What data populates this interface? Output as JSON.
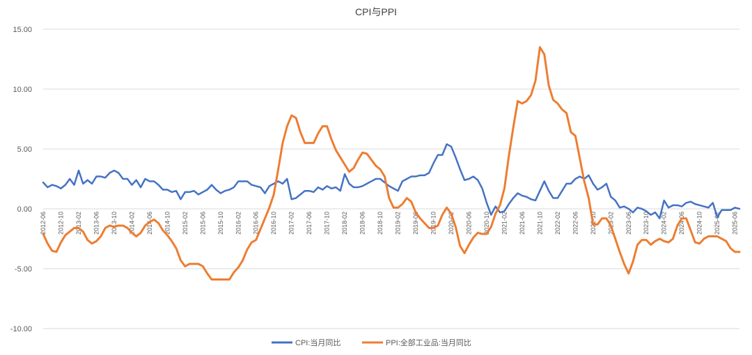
{
  "chart_data": {
    "type": "line",
    "title": "CPI与PPI",
    "xlabel": "",
    "ylabel": "",
    "ylim": [
      -10,
      15
    ],
    "yticks": [
      "-10.00",
      "-5.00",
      "0.00",
      "5.00",
      "10.00",
      "15.00"
    ],
    "ytick_values": [
      -10,
      -5,
      0,
      5,
      10,
      15
    ],
    "grid": "horizontal",
    "legend_position": "bottom",
    "x_start": "2012-06",
    "x_end": "2025-08",
    "xtick_labels": [
      "2012-06",
      "2012-10",
      "2013-02",
      "2013-06",
      "2013-10",
      "2014-02",
      "2014-06",
      "2014-10",
      "2015-02",
      "2015-06",
      "2015-10",
      "2016-02",
      "2016-06",
      "2016-10",
      "2017-02",
      "2017-06",
      "2017-10",
      "2018-02",
      "2018-06",
      "2018-10",
      "2019-02",
      "2019-06",
      "2019-10",
      "2020-02",
      "2020-06",
      "2020-10",
      "2021-02",
      "2021-06",
      "2021-10",
      "2022-02",
      "2022-06",
      "2022-10",
      "2023-02",
      "2023-06",
      "2023-10",
      "2024-02",
      "2024-06",
      "2024-10",
      "2025-02",
      "2025-06"
    ],
    "series": [
      {
        "name": "CPI:当月同比",
        "color": "#4472C4",
        "values": [
          2.2,
          1.8,
          2.0,
          1.9,
          1.7,
          2.0,
          2.5,
          2.0,
          3.2,
          2.1,
          2.4,
          2.1,
          2.7,
          2.7,
          2.6,
          3.0,
          3.2,
          3.0,
          2.5,
          2.5,
          2.0,
          2.4,
          1.8,
          2.5,
          2.3,
          2.3,
          2.0,
          1.6,
          1.6,
          1.4,
          1.5,
          0.8,
          1.4,
          1.4,
          1.5,
          1.2,
          1.4,
          1.6,
          2.0,
          1.6,
          1.3,
          1.5,
          1.6,
          1.8,
          2.3,
          2.3,
          2.3,
          2.0,
          1.9,
          1.8,
          1.3,
          1.9,
          2.1,
          2.3,
          2.1,
          2.5,
          0.8,
          0.9,
          1.2,
          1.5,
          1.5,
          1.4,
          1.8,
          1.6,
          1.9,
          1.7,
          1.8,
          1.5,
          2.9,
          2.1,
          1.8,
          1.8,
          1.9,
          2.1,
          2.3,
          2.5,
          2.5,
          2.2,
          1.9,
          1.7,
          1.5,
          2.3,
          2.5,
          2.7,
          2.7,
          2.8,
          2.8,
          3.0,
          3.8,
          4.5,
          4.5,
          5.4,
          5.2,
          4.3,
          3.3,
          2.4,
          2.5,
          2.7,
          2.4,
          1.7,
          0.5,
          -0.5,
          0.2,
          -0.3,
          -0.2,
          0.4,
          0.9,
          1.3,
          1.1,
          1.0,
          0.8,
          0.7,
          1.5,
          2.3,
          1.5,
          0.9,
          0.9,
          1.5,
          2.1,
          2.1,
          2.5,
          2.7,
          2.5,
          2.8,
          2.1,
          1.6,
          1.8,
          2.1,
          1.0,
          0.7,
          0.1,
          0.2,
          0.0,
          -0.3,
          0.1,
          0.0,
          -0.2,
          -0.5,
          -0.3,
          -0.8,
          0.7,
          0.1,
          0.3,
          0.3,
          0.2,
          0.5,
          0.6,
          0.4,
          0.3,
          0.2,
          0.1,
          0.5,
          -0.7,
          -0.1,
          -0.1,
          -0.1,
          0.1,
          0.0
        ]
      },
      {
        "name": "PPI:全部工业品:当月同比",
        "color": "#ED7D31",
        "values": [
          -2.1,
          -2.9,
          -3.5,
          -3.6,
          -2.8,
          -2.2,
          -1.9,
          -1.6,
          -1.6,
          -1.9,
          -2.6,
          -2.9,
          -2.7,
          -2.3,
          -1.6,
          -1.4,
          -1.5,
          -1.4,
          -1.4,
          -1.6,
          -2.0,
          -2.3,
          -2.0,
          -1.4,
          -1.1,
          -0.9,
          -1.2,
          -1.8,
          -2.2,
          -2.7,
          -3.3,
          -4.3,
          -4.8,
          -4.6,
          -4.6,
          -4.6,
          -4.8,
          -5.4,
          -5.9,
          -5.9,
          -5.9,
          -5.9,
          -5.9,
          -5.3,
          -4.9,
          -4.3,
          -3.4,
          -2.8,
          -2.6,
          -1.7,
          -0.8,
          0.1,
          1.2,
          3.3,
          5.5,
          6.9,
          7.8,
          7.6,
          6.4,
          5.5,
          5.5,
          5.5,
          6.3,
          6.9,
          6.9,
          5.8,
          4.9,
          4.3,
          3.7,
          3.1,
          3.4,
          4.1,
          4.7,
          4.6,
          4.1,
          3.6,
          3.3,
          2.7,
          0.9,
          0.1,
          0.1,
          0.4,
          0.9,
          0.6,
          -0.3,
          -0.8,
          -1.2,
          -1.6,
          -1.6,
          -1.4,
          -0.5,
          0.1,
          -0.4,
          -1.5,
          -3.1,
          -3.7,
          -3.0,
          -2.4,
          -2.0,
          -2.1,
          -2.1,
          -1.5,
          -0.4,
          0.3,
          1.7,
          4.4,
          6.8,
          9.0,
          8.8,
          9.0,
          9.5,
          10.7,
          13.5,
          12.9,
          10.3,
          9.1,
          8.8,
          8.3,
          8.0,
          6.4,
          6.1,
          4.2,
          2.3,
          0.9,
          -1.3,
          -1.3,
          -0.8,
          -0.8,
          -1.4,
          -2.5,
          -3.6,
          -4.6,
          -5.4,
          -4.4,
          -3.0,
          -2.6,
          -2.6,
          -3.0,
          -2.7,
          -2.5,
          -2.7,
          -2.8,
          -2.5,
          -1.4,
          -0.8,
          -0.8,
          -1.8,
          -2.8,
          -2.9,
          -2.5,
          -2.3,
          -2.3,
          -2.3,
          -2.5,
          -2.7,
          -3.3,
          -3.6,
          -3.6
        ]
      }
    ]
  }
}
